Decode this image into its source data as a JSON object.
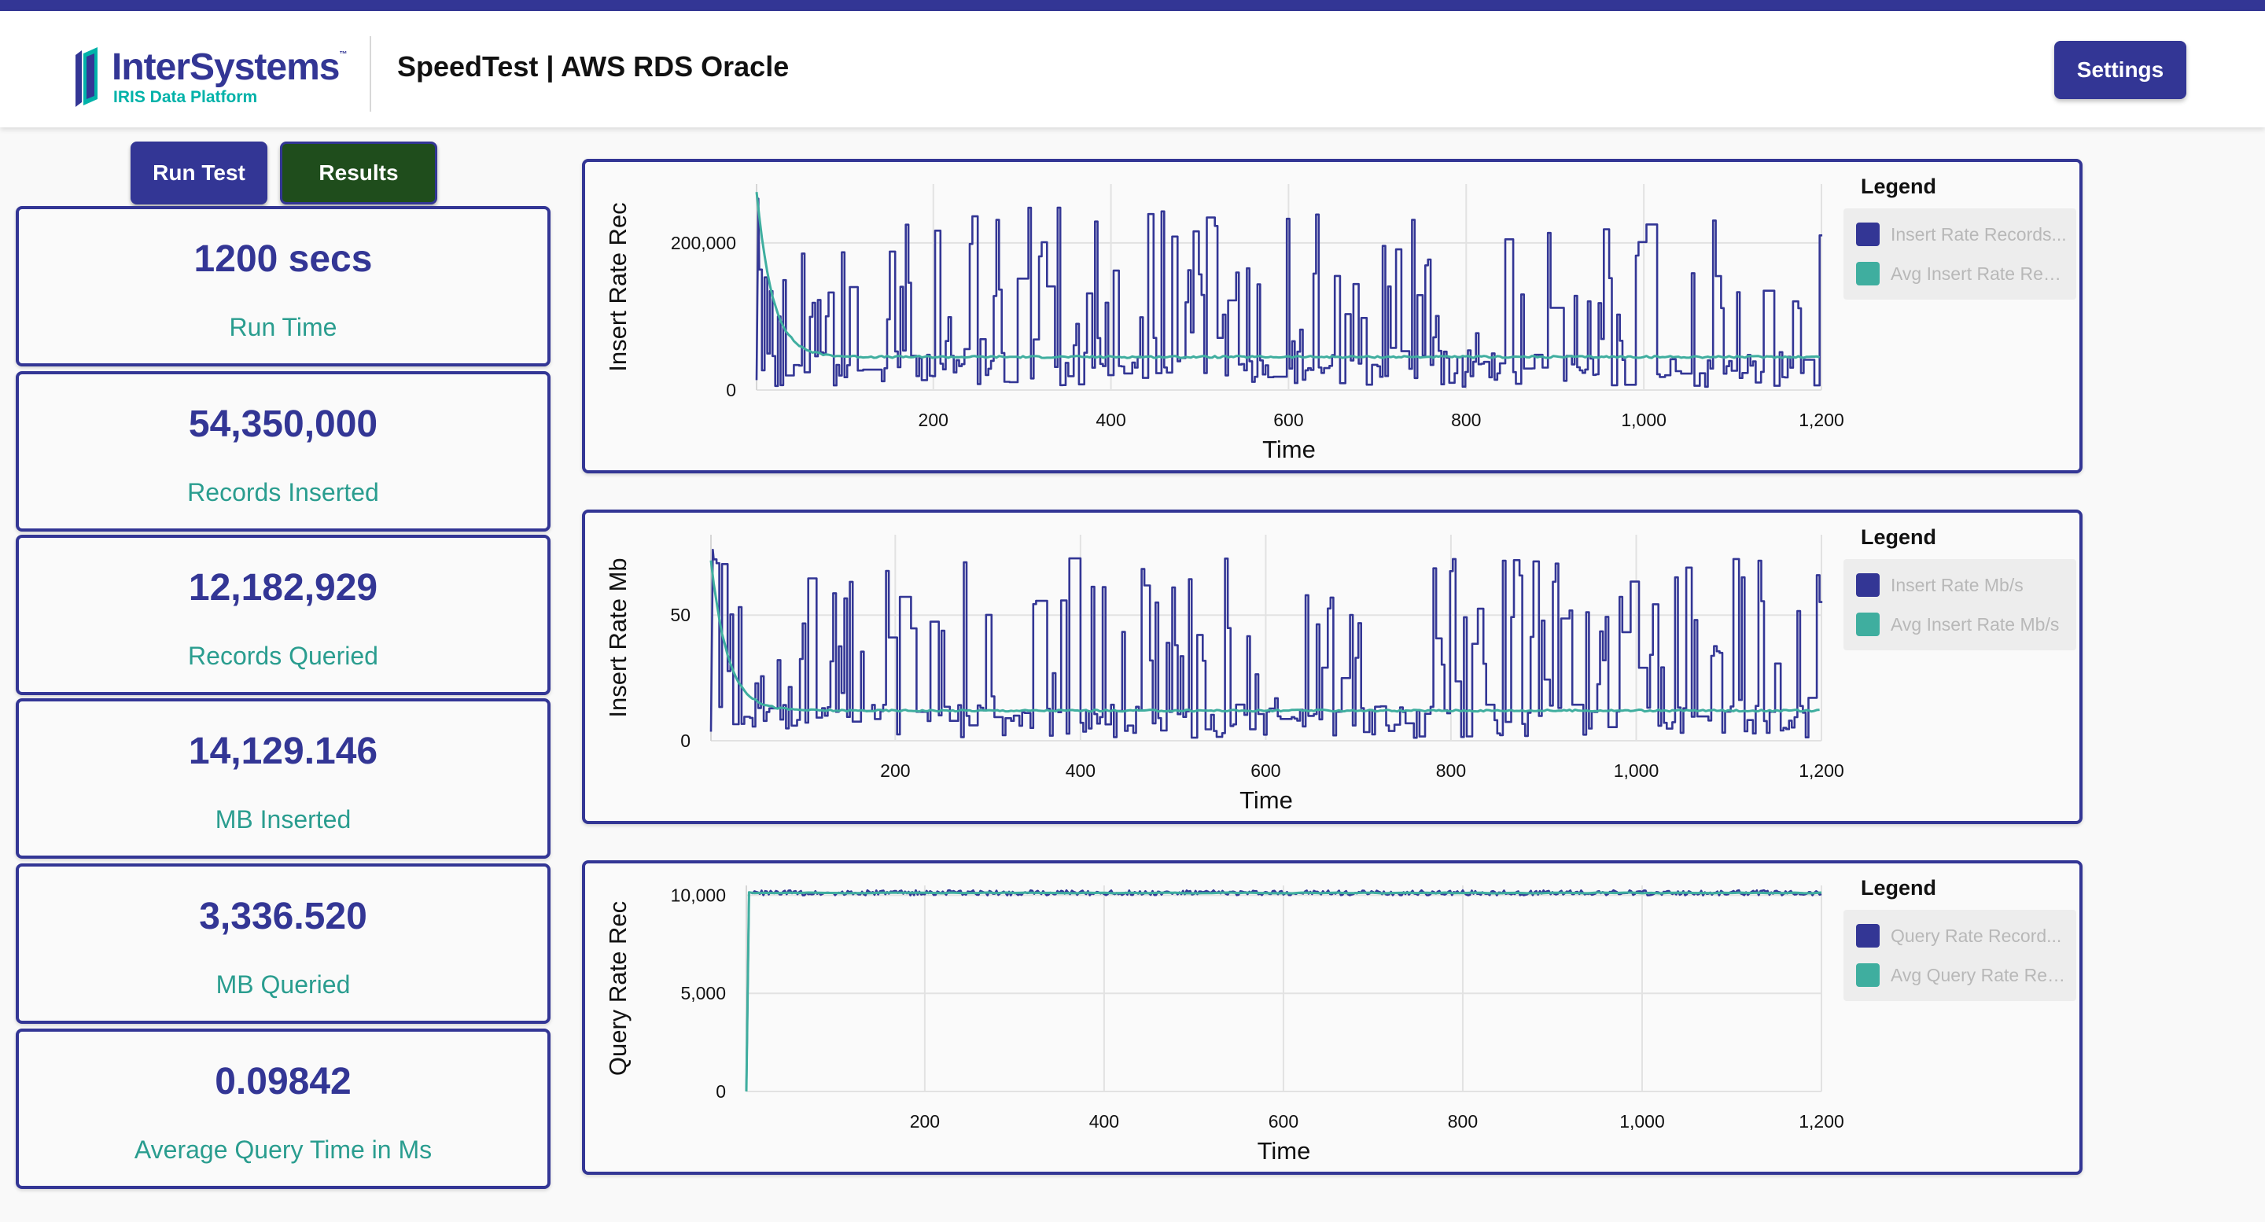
{
  "header": {
    "logo_brand": "InterSystems",
    "logo_tm": "™",
    "logo_sub": "IRIS Data Platform",
    "title": "SpeedTest | AWS RDS Oracle",
    "settings_label": "Settings"
  },
  "actions": {
    "run_label": "Run Test",
    "results_label": "Results"
  },
  "stats": [
    {
      "value": "1200 secs",
      "label": "Run Time"
    },
    {
      "value": "54,350,000",
      "label": "Records Inserted"
    },
    {
      "value": "12,182,929",
      "label": "Records Queried"
    },
    {
      "value": "14,129.146",
      "label": "MB Inserted"
    },
    {
      "value": "3,336.520",
      "label": "MB Queried"
    },
    {
      "value": "0.09842",
      "label": "Average Query Time in Ms"
    }
  ],
  "colors": {
    "primary": "#333695",
    "teal": "#3fae9f",
    "results_bg": "#1f4d1c",
    "stat_label": "#2a9d8f"
  },
  "chart_data": [
    {
      "type": "line",
      "xlabel": "Time",
      "ylabel": "Insert Rate Rec",
      "xlim": [
        1,
        1200
      ],
      "ylim": [
        0,
        280000
      ],
      "xticks": [
        200,
        400,
        600,
        800,
        1000,
        1200
      ],
      "xtick_labels": [
        "200",
        "400",
        "600",
        "800",
        "1,000",
        "1,200"
      ],
      "yticks": [
        0,
        200000
      ],
      "ytick_labels": [
        "0",
        "200,000"
      ],
      "legend_title": "Legend",
      "legend": "right",
      "grid": true,
      "series": [
        {
          "name": "Insert Rate Records...",
          "color": "#333695",
          "pattern": "spiky",
          "base": 45000,
          "peak": 260000
        },
        {
          "name": "Avg Insert Rate Rec...",
          "color": "#3fae9f",
          "pattern": "decay",
          "start": 270000,
          "end": 45000
        }
      ]
    },
    {
      "type": "line",
      "xlabel": "Time",
      "ylabel": "Insert Rate Mb",
      "xlim": [
        1,
        1200
      ],
      "ylim": [
        0,
        82
      ],
      "xticks": [
        200,
        400,
        600,
        800,
        1000,
        1200
      ],
      "xtick_labels": [
        "200",
        "400",
        "600",
        "800",
        "1,000",
        "1,200"
      ],
      "yticks": [
        0,
        50
      ],
      "ytick_labels": [
        "0",
        "50"
      ],
      "legend_title": "Legend",
      "legend": "right",
      "grid": true,
      "series": [
        {
          "name": "Insert Rate Mb/s",
          "color": "#333695",
          "pattern": "spiky",
          "base": 12,
          "peak": 76
        },
        {
          "name": "Avg Insert Rate Mb/s",
          "color": "#3fae9f",
          "pattern": "decay",
          "start": 72,
          "end": 12
        }
      ]
    },
    {
      "type": "line",
      "xlabel": "Time",
      "ylabel": "Query Rate Rec",
      "xlim": [
        1,
        1200
      ],
      "ylim": [
        0,
        10500
      ],
      "xticks": [
        200,
        400,
        600,
        800,
        1000,
        1200
      ],
      "xtick_labels": [
        "200",
        "400",
        "600",
        "800",
        "1,000",
        "1,200"
      ],
      "yticks": [
        0,
        5000,
        10000
      ],
      "ytick_labels": [
        "0",
        "5,000",
        "10,000"
      ],
      "legend_title": "Legend",
      "legend": "right",
      "grid": true,
      "series": [
        {
          "name": "Query Rate Record...",
          "color": "#333695",
          "pattern": "flat",
          "level": 10150
        },
        {
          "name": "Avg Query Rate Rec...",
          "color": "#3fae9f",
          "pattern": "flat-smooth",
          "level": 10150
        }
      ]
    }
  ]
}
